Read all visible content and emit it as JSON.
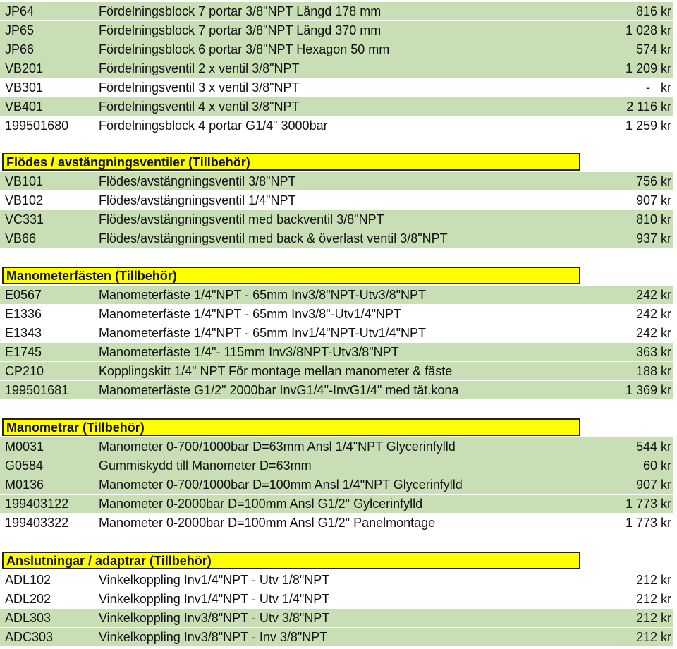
{
  "sections": [
    {
      "title": "",
      "items": [
        {
          "code": "JP64",
          "desc": "Fördelningsblock 7 portar 3/8\"NPT Längd 178 mm",
          "price": "816 kr"
        },
        {
          "code": "JP65",
          "desc": "Fördelningsblock 7 portar 3/8\"NPT Längd 370 mm",
          "price": "1 028 kr"
        },
        {
          "code": "JP66",
          "desc": "Fördelningsblock 6 portar 3/8\"NPT Hexagon 50 mm",
          "price": "574 kr"
        },
        {
          "code": "VB201",
          "desc": "Fördelningsventil 2 x ventil 3/8\"NPT",
          "price": "1 209 kr"
        },
        {
          "code": "VB301",
          "desc": "Fördelningsventil 3 x ventil 3/8\"NPT",
          "price": "-   kr"
        },
        {
          "code": "VB401",
          "desc": "Fördelningsventil 4 x ventil 3/8\"NPT",
          "price": "2 116 kr"
        },
        {
          "code": "199501680",
          "desc": "Fördelningsblock 4 portar G1/4\" 3000bar",
          "price": "1 259 kr"
        }
      ]
    },
    {
      "title": "Flödes / avstängningsventiler (Tillbehör)",
      "items": [
        {
          "code": "VB101",
          "desc": "Flödes/avstängningsventil 3/8\"NPT",
          "price": "756 kr"
        },
        {
          "code": "VB102",
          "desc": "Flödes/avstängningsventil 1/4\"NPT",
          "price": "907 kr"
        },
        {
          "code": "VC331",
          "desc": "Flödes/avstängningsventil med backventil 3/8\"NPT",
          "price": "810 kr"
        },
        {
          "code": "VB66",
          "desc": "Flödes/avstängningsventil med back & överlast ventil 3/8\"NPT",
          "price": "937 kr"
        }
      ]
    },
    {
      "title": "Manometerfästen (Tillbehör)",
      "items": [
        {
          "code": "E0567",
          "desc": "Manometerfäste 1/4\"NPT - 65mm  Inv3/8\"NPT-Utv3/8\"NPT",
          "price": "242 kr"
        },
        {
          "code": "E1336",
          "desc": "Manometerfäste 1/4\"NPT - 65mm  Inv3/8\"-Utv1/4\"NPT",
          "price": "242 kr"
        },
        {
          "code": "E1343",
          "desc": "Manometerfäste 1/4\"NPT - 65mm  Inv1/4\"NPT-Utv1/4\"NPT",
          "price": "242 kr"
        },
        {
          "code": "E1745",
          "desc": "Manometerfäste  1/4\"- 115mm Inv3/8NPT-Utv3/8\"NPT",
          "price": "363 kr"
        },
        {
          "code": "CP210",
          "desc": "Kopplingskitt 1/4\" NPT För montage mellan manometer & fäste",
          "price": "188 kr"
        },
        {
          "code": "199501681",
          "desc": "Manometerfäste G1/2\" 2000bar InvG1/4\"-InvG1/4\" med tät.kona",
          "price": "1 369 kr"
        }
      ]
    },
    {
      "title": "Manometrar (Tillbehör)",
      "items": [
        {
          "code": "M0031",
          "desc": "Manometer 0-700/1000bar D=63mm Ansl 1/4\"NPT Glycerinfylld",
          "price": "544 kr"
        },
        {
          "code": "G0584",
          "desc": "Gummiskydd till Manometer D=63mm",
          "price": "60 kr"
        },
        {
          "code": "M0136",
          "desc": "Manometer 0-700/1000bar D=100mm Ansl 1/4\"NPT Glycerinfylld",
          "price": "907 kr"
        },
        {
          "code": "199403122",
          "desc": "Manometer 0-2000bar D=100mm Ansl G1/2\"  Gylcerinfylld",
          "price": "1 773 kr"
        },
        {
          "code": "199403322",
          "desc": "Manometer 0-2000bar D=100mm Ansl G1/2\"  Panelmontage",
          "price": "1 773 kr"
        }
      ]
    },
    {
      "title": "Anslutningar / adaptrar (Tillbehör)",
      "items": [
        {
          "code": "ADL102",
          "desc": "Vinkelkoppling Inv1/4\"NPT - Utv 1/8\"NPT",
          "price": "212 kr"
        },
        {
          "code": "ADL202",
          "desc": "Vinkelkoppling Inv1/4\"NPT - Utv 1/4\"NPT",
          "price": "212 kr"
        },
        {
          "code": "ADL303",
          "desc": "Vinkelkoppling Inv3/8\"NPT - Utv 3/8\"NPT",
          "price": "212 kr"
        },
        {
          "code": "ADC303",
          "desc": "Vinkelkoppling Inv3/8\"NPT - Inv 3/8\"NPT",
          "price": "212 kr"
        }
      ]
    }
  ]
}
